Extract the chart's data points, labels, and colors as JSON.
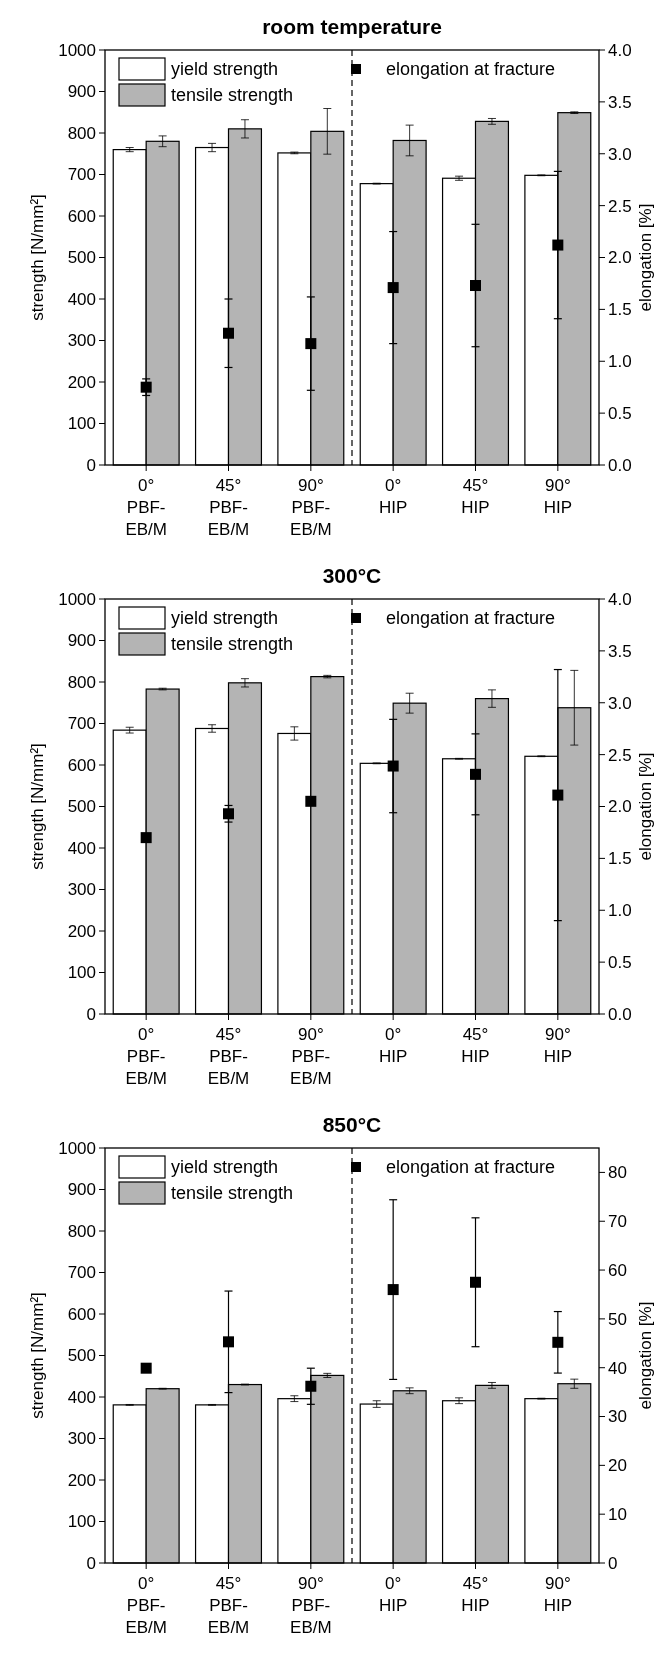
{
  "chart_data": [
    {
      "type": "bar",
      "title": "room temperature",
      "ylabel": "strength [N/mm²]",
      "y2label": "elongation [%]",
      "categories": [
        "0°\nPBF-\nEB/M",
        "45°\nPBF-\nEB/M",
        "90°\nPBF-\nEB/M",
        "0°\nHIP",
        "45°\nHIP",
        "90°\nHIP"
      ],
      "series": [
        {
          "name": "yield strength",
          "color": "#ffffff",
          "values": [
            760,
            765,
            752,
            678,
            691,
            698
          ],
          "errors": [
            5,
            10,
            2,
            1,
            5,
            1
          ]
        },
        {
          "name": "tensile strength",
          "color": "#b4b4b4",
          "values": [
            780,
            810,
            804,
            782,
            828,
            849
          ],
          "errors": [
            13,
            22,
            55,
            37,
            7,
            2
          ]
        },
        {
          "name": "elongation at fracture",
          "type": "scatter",
          "axis": "y2",
          "color": "#000000",
          "values": [
            0.75,
            1.27,
            1.17,
            1.71,
            1.73,
            2.12
          ],
          "errors": [
            0.08,
            0.33,
            0.45,
            0.54,
            0.59,
            0.71
          ]
        }
      ],
      "ylim": [
        0,
        1000
      ],
      "yticks": [
        0,
        100,
        200,
        300,
        400,
        500,
        600,
        700,
        800,
        900,
        1000
      ],
      "y2lim": [
        0,
        4
      ],
      "y2ticks": [
        {
          "value": 0,
          "label": "0.0"
        },
        {
          "value": 0.5,
          "label": "0.5"
        },
        {
          "value": 1,
          "label": "1.0"
        },
        {
          "value": 1.5,
          "label": "1.5"
        },
        {
          "value": 2,
          "label": "2.0"
        },
        {
          "value": 2.5,
          "label": "2.5"
        },
        {
          "value": 3,
          "label": "3.0"
        },
        {
          "value": 3.5,
          "label": "3.5"
        },
        {
          "value": 4,
          "label": "4.0"
        }
      ],
      "marker": "square",
      "legend": "top"
    },
    {
      "type": "bar",
      "title": "300°C",
      "ylabel": "strength [N/mm²]",
      "y2label": "elongation [%]",
      "categories": [
        "0°\nPBF-\nEB/M",
        "45°\nPBF-\nEB/M",
        "90°\nPBF-\nEB/M",
        "0°\nHIP",
        "45°\nHIP",
        "90°\nHIP"
      ],
      "series": [
        {
          "name": "yield strength",
          "color": "#ffffff",
          "values": [
            684,
            688,
            676,
            604,
            615,
            621
          ],
          "errors": [
            7,
            9,
            16,
            1,
            1,
            1
          ]
        },
        {
          "name": "tensile strength",
          "color": "#b4b4b4",
          "values": [
            783,
            798,
            813,
            749,
            760,
            738
          ],
          "errors": [
            2,
            10,
            3,
            24,
            21,
            90
          ]
        },
        {
          "name": "elongation at fracture",
          "type": "scatter",
          "axis": "y2",
          "color": "#000000",
          "values": [
            1.7,
            1.93,
            2.05,
            2.39,
            2.31,
            2.11
          ],
          "errors": [
            null,
            0.08,
            0.03,
            0.45,
            0.39,
            1.21
          ]
        }
      ],
      "ylim": [
        0,
        1000
      ],
      "yticks": [
        0,
        100,
        200,
        300,
        400,
        500,
        600,
        700,
        800,
        900,
        1000
      ],
      "y2lim": [
        0,
        4
      ],
      "y2ticks": [
        {
          "value": 0,
          "label": "0.0"
        },
        {
          "value": 0.5,
          "label": "0.5"
        },
        {
          "value": 1,
          "label": "1.0"
        },
        {
          "value": 1.5,
          "label": "1.5"
        },
        {
          "value": 2,
          "label": "2.0"
        },
        {
          "value": 2.5,
          "label": "2.5"
        },
        {
          "value": 3,
          "label": "3.0"
        },
        {
          "value": 3.5,
          "label": "3.5"
        },
        {
          "value": 4,
          "label": "4.0"
        }
      ],
      "marker": "square",
      "legend": "top"
    },
    {
      "type": "bar",
      "title": "850°C",
      "ylabel": "strength [N/mm²]",
      "y2label": "elongation [%]",
      "categories": [
        "0°\nPBF-\nEB/M",
        "45°\nPBF-\nEB/M",
        "90°\nPBF-\nEB/M",
        "0°\nHIP",
        "45°\nHIP",
        "90°\nHIP"
      ],
      "series": [
        {
          "name": "yield strength",
          "color": "#ffffff",
          "values": [
            381,
            381,
            396,
            383,
            391,
            396
          ],
          "errors": [
            1,
            1,
            7,
            8,
            7,
            1
          ]
        },
        {
          "name": "tensile strength",
          "color": "#b4b4b4",
          "values": [
            420,
            430,
            452,
            415,
            428,
            432
          ],
          "errors": [
            1,
            1,
            5,
            7,
            7,
            11
          ]
        },
        {
          "name": "elongation at fracture",
          "type": "scatter",
          "axis": "y2",
          "color": "#000000",
          "values": [
            39.9,
            45.3,
            36.2,
            56,
            57.5,
            45.2
          ],
          "errors": [
            null,
            10.4,
            3.7,
            18.4,
            13.2,
            6.3
          ]
        }
      ],
      "ylim": [
        0,
        1000
      ],
      "yticks": [
        0,
        100,
        200,
        300,
        400,
        500,
        600,
        700,
        800,
        900,
        1000
      ],
      "y2lim": [
        0,
        85
      ],
      "y2ticks": [
        0,
        10,
        20,
        30,
        40,
        50,
        60,
        70,
        80
      ],
      "marker": "square",
      "legend": "top"
    }
  ]
}
